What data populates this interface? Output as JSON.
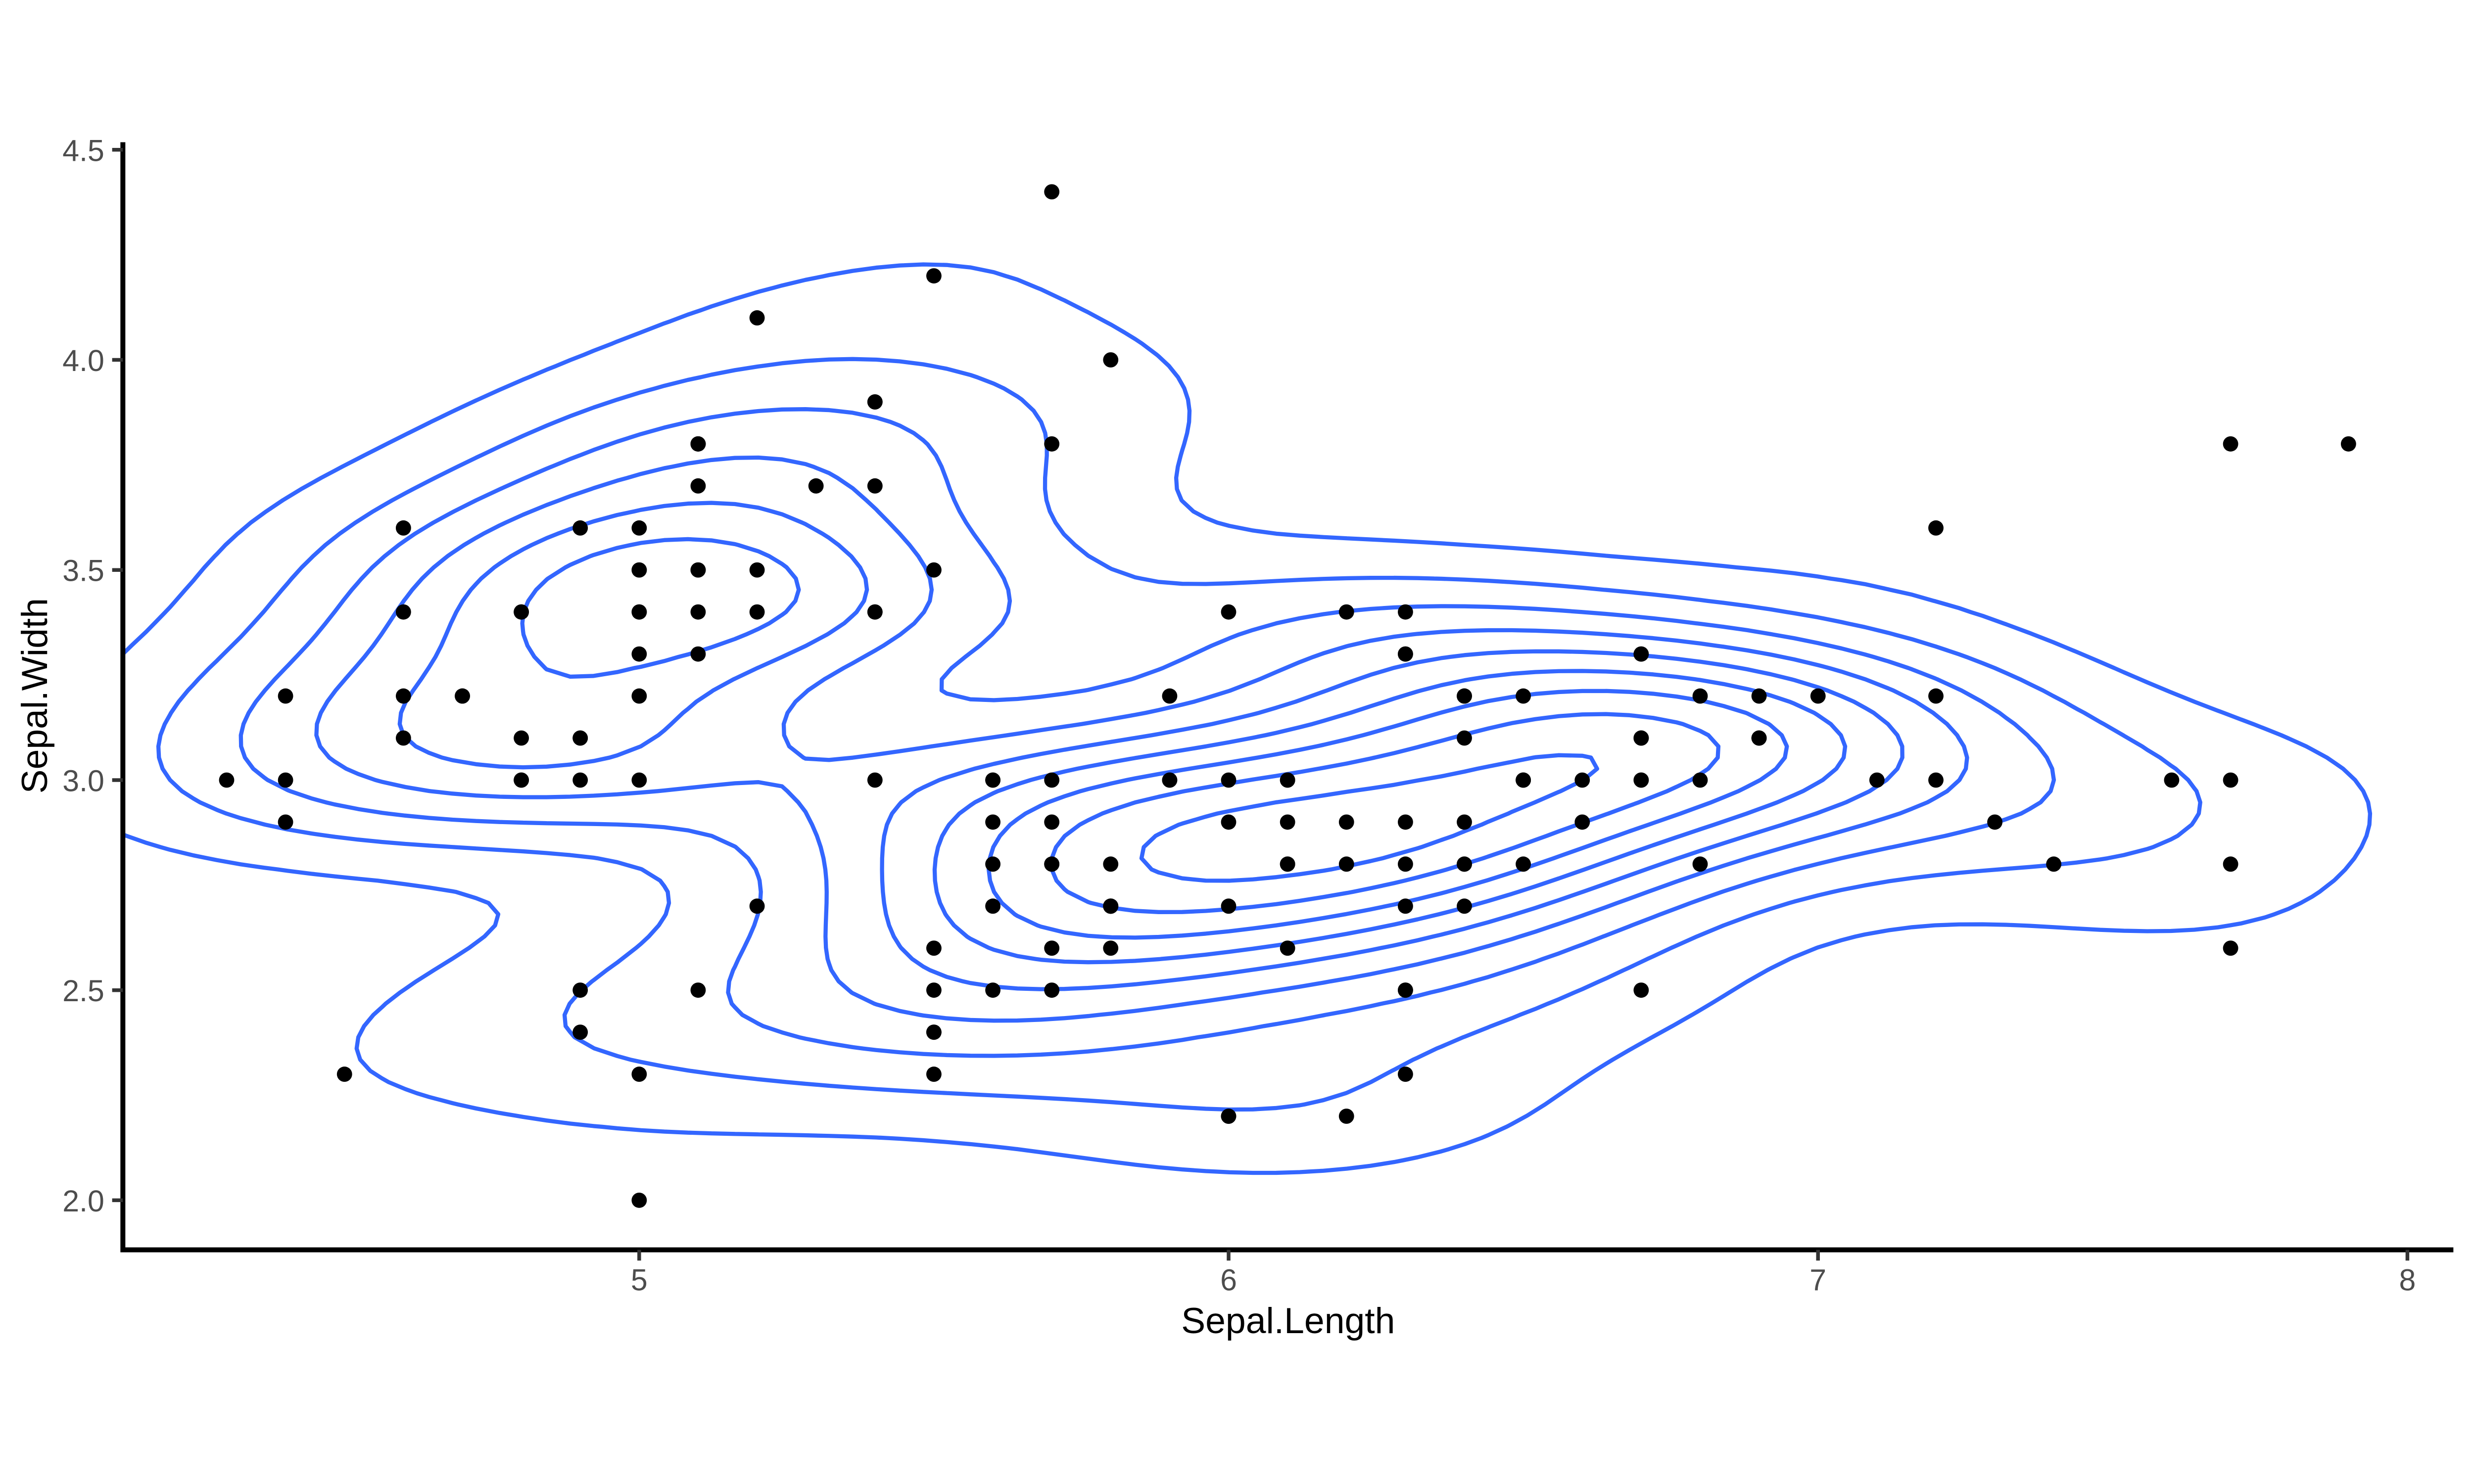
{
  "chart_data": {
    "type": "scatter",
    "subtype": "scatter-with-2d-density-contours",
    "xlabel": "Sepal.Length",
    "ylabel": "Sepal.Width",
    "x_ticks": {
      "values": [
        5,
        6,
        7,
        8
      ],
      "labels": [
        "5",
        "6",
        "7",
        "8"
      ]
    },
    "y_ticks": {
      "values": [
        2.0,
        2.5,
        3.0,
        3.5,
        4.0,
        4.5
      ],
      "labels": [
        "2.0",
        "2.5",
        "3.0",
        "3.5",
        "4.0",
        "4.5"
      ]
    },
    "xlim": [
      4.124,
      8.078
    ],
    "ylim": [
      1.882,
      4.518
    ],
    "grid": "off",
    "legend": "none",
    "background": "#FFFFFF",
    "point_color": "#000000",
    "point_radius_px": 18.5,
    "contour_color": "#3366FF",
    "contour_stroke_px": 10,
    "axis_line_color": "#000000",
    "tick_color": "#333333",
    "tick_label_color": "#4D4D4D",
    "axis_title_color": "#000000",
    "contour": {
      "method": "kde2d-gaussian",
      "bandwidth_rule": "nrd/4",
      "grid_n": 100,
      "levels_rule": "pretty-10"
    },
    "points": [
      [
        5.1,
        3.5
      ],
      [
        4.9,
        3.0
      ],
      [
        4.7,
        3.2
      ],
      [
        4.6,
        3.1
      ],
      [
        5.0,
        3.6
      ],
      [
        5.4,
        3.9
      ],
      [
        4.6,
        3.4
      ],
      [
        5.0,
        3.4
      ],
      [
        4.4,
        2.9
      ],
      [
        4.9,
        3.1
      ],
      [
        5.4,
        3.7
      ],
      [
        4.8,
        3.4
      ],
      [
        4.8,
        3.0
      ],
      [
        4.3,
        3.0
      ],
      [
        5.8,
        4.0
      ],
      [
        5.7,
        4.4
      ],
      [
        5.4,
        3.9
      ],
      [
        5.1,
        3.5
      ],
      [
        5.7,
        3.8
      ],
      [
        5.1,
        3.8
      ],
      [
        5.4,
        3.4
      ],
      [
        5.1,
        3.7
      ],
      [
        4.6,
        3.6
      ],
      [
        5.1,
        3.3
      ],
      [
        4.8,
        3.4
      ],
      [
        5.0,
        3.0
      ],
      [
        5.0,
        3.4
      ],
      [
        5.2,
        3.5
      ],
      [
        5.2,
        3.4
      ],
      [
        4.7,
        3.2
      ],
      [
        4.8,
        3.1
      ],
      [
        5.4,
        3.4
      ],
      [
        5.2,
        4.1
      ],
      [
        5.5,
        4.2
      ],
      [
        4.9,
        3.1
      ],
      [
        5.0,
        3.2
      ],
      [
        5.5,
        3.5
      ],
      [
        4.9,
        3.6
      ],
      [
        4.4,
        3.0
      ],
      [
        5.1,
        3.4
      ],
      [
        5.0,
        3.5
      ],
      [
        4.5,
        2.3
      ],
      [
        4.4,
        3.2
      ],
      [
        5.0,
        3.5
      ],
      [
        5.1,
        3.8
      ],
      [
        4.8,
        3.0
      ],
      [
        5.1,
        3.8
      ],
      [
        4.6,
        3.2
      ],
      [
        5.3,
        3.7
      ],
      [
        5.0,
        3.3
      ],
      [
        7.0,
        3.2
      ],
      [
        6.4,
        3.2
      ],
      [
        6.9,
        3.1
      ],
      [
        5.5,
        2.3
      ],
      [
        6.5,
        2.8
      ],
      [
        5.7,
        2.8
      ],
      [
        6.3,
        3.3
      ],
      [
        4.9,
        2.4
      ],
      [
        6.6,
        2.9
      ],
      [
        5.2,
        2.7
      ],
      [
        5.0,
        2.0
      ],
      [
        5.9,
        3.0
      ],
      [
        6.0,
        2.2
      ],
      [
        6.1,
        2.9
      ],
      [
        5.6,
        2.9
      ],
      [
        6.7,
        3.1
      ],
      [
        5.6,
        3.0
      ],
      [
        5.8,
        2.7
      ],
      [
        6.2,
        2.2
      ],
      [
        5.6,
        2.5
      ],
      [
        5.9,
        3.2
      ],
      [
        6.1,
        2.8
      ],
      [
        6.3,
        2.5
      ],
      [
        6.1,
        2.8
      ],
      [
        6.4,
        2.9
      ],
      [
        6.6,
        3.0
      ],
      [
        6.8,
        2.8
      ],
      [
        6.7,
        3.0
      ],
      [
        6.0,
        2.9
      ],
      [
        5.7,
        2.6
      ],
      [
        5.5,
        2.4
      ],
      [
        5.5,
        2.4
      ],
      [
        5.8,
        2.7
      ],
      [
        6.0,
        2.7
      ],
      [
        5.4,
        3.0
      ],
      [
        6.0,
        3.4
      ],
      [
        6.7,
        3.1
      ],
      [
        6.3,
        2.3
      ],
      [
        5.6,
        3.0
      ],
      [
        5.5,
        2.5
      ],
      [
        5.5,
        2.6
      ],
      [
        6.1,
        3.0
      ],
      [
        5.8,
        2.6
      ],
      [
        5.0,
        2.3
      ],
      [
        5.6,
        2.7
      ],
      [
        5.7,
        3.0
      ],
      [
        5.7,
        2.9
      ],
      [
        6.2,
        2.9
      ],
      [
        5.1,
        2.5
      ],
      [
        5.7,
        2.8
      ],
      [
        6.3,
        3.3
      ],
      [
        5.8,
        2.7
      ],
      [
        7.1,
        3.0
      ],
      [
        6.3,
        2.9
      ],
      [
        6.5,
        3.0
      ],
      [
        7.6,
        3.0
      ],
      [
        4.9,
        2.5
      ],
      [
        7.3,
        2.9
      ],
      [
        6.7,
        2.5
      ],
      [
        7.2,
        3.6
      ],
      [
        6.5,
        3.2
      ],
      [
        6.4,
        2.7
      ],
      [
        6.8,
        3.0
      ],
      [
        5.7,
        2.5
      ],
      [
        5.8,
        2.8
      ],
      [
        6.4,
        3.2
      ],
      [
        6.5,
        3.0
      ],
      [
        7.7,
        3.8
      ],
      [
        7.7,
        2.6
      ],
      [
        6.0,
        2.2
      ],
      [
        6.9,
        3.2
      ],
      [
        5.6,
        2.8
      ],
      [
        7.7,
        2.8
      ],
      [
        6.3,
        2.7
      ],
      [
        6.7,
        3.3
      ],
      [
        7.2,
        3.2
      ],
      [
        6.2,
        2.8
      ],
      [
        6.1,
        3.0
      ],
      [
        6.4,
        2.8
      ],
      [
        7.2,
        3.0
      ],
      [
        7.4,
        2.8
      ],
      [
        7.9,
        3.8
      ],
      [
        6.4,
        2.8
      ],
      [
        6.3,
        2.8
      ],
      [
        6.1,
        2.6
      ],
      [
        7.7,
        3.0
      ],
      [
        6.3,
        3.4
      ],
      [
        6.4,
        3.1
      ],
      [
        6.0,
        3.0
      ],
      [
        6.9,
        3.1
      ],
      [
        6.7,
        3.1
      ],
      [
        6.9,
        3.1
      ],
      [
        5.8,
        2.7
      ],
      [
        6.8,
        3.2
      ],
      [
        6.7,
        3.3
      ],
      [
        6.7,
        3.0
      ],
      [
        6.3,
        2.5
      ],
      [
        6.5,
        3.0
      ],
      [
        6.2,
        3.4
      ],
      [
        5.9,
        3.0
      ]
    ]
  }
}
